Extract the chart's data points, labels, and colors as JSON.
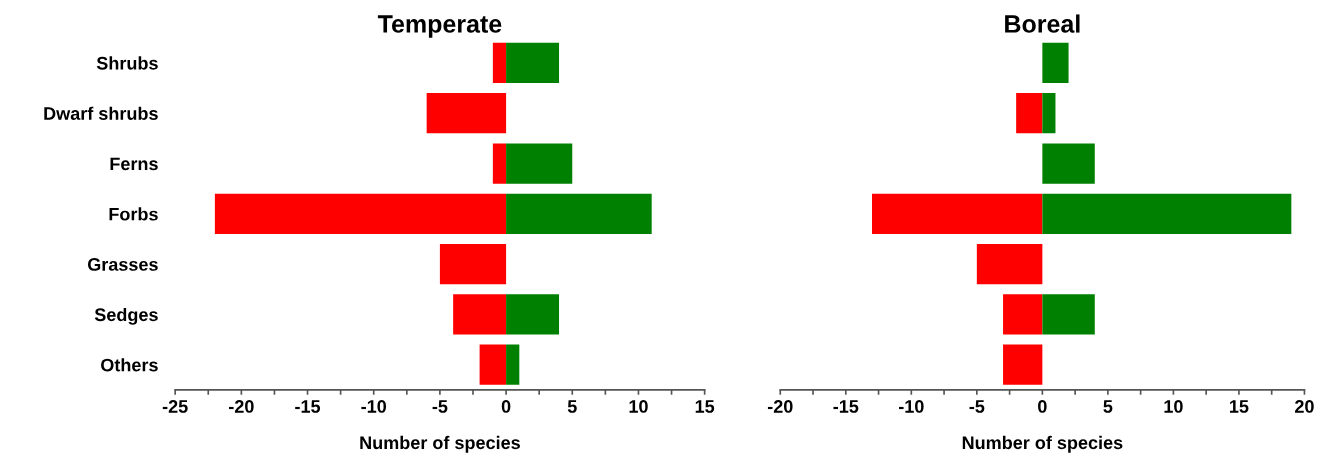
{
  "chart_data": [
    {
      "type": "bar",
      "orientation": "horizontal",
      "stacked": true,
      "title": "Temperate",
      "xlabel": "Number of species",
      "categories": [
        "Shrubs",
        "Dwarf shrubs",
        "Ferns",
        "Forbs",
        "Grasses",
        "Sedges",
        "Others"
      ],
      "series": [
        {
          "color": "#ff0000",
          "values": [
            -1,
            -6,
            -1,
            -22,
            -5,
            -4,
            -2
          ]
        },
        {
          "color": "#008000",
          "values": [
            4,
            0,
            5,
            11,
            0,
            4,
            1
          ]
        }
      ],
      "xlim": [
        -25,
        15
      ],
      "xticks": [
        -25,
        {
          "value": -22.5,
          "label": null
        },
        -20,
        {
          "value": -17.5,
          "label": null
        },
        -15,
        {
          "value": -12.5,
          "label": null
        },
        -10,
        {
          "value": -7.5,
          "label": null
        },
        -5,
        {
          "value": -2.5,
          "label": null
        },
        0,
        {
          "value": 2.5,
          "label": null
        },
        5,
        {
          "value": 7.5,
          "label": null
        },
        10,
        {
          "value": 12.5,
          "label": null
        },
        15
      ],
      "grid": false,
      "legend": false
    },
    {
      "type": "bar",
      "orientation": "horizontal",
      "stacked": true,
      "title": "Boreal",
      "xlabel": "Number of species",
      "categories": [
        null,
        null,
        null,
        null,
        null,
        null,
        null
      ],
      "series": [
        {
          "color": "#ff0000",
          "values": [
            0,
            -2,
            0,
            -13,
            -5,
            -3,
            -3
          ]
        },
        {
          "color": "#008000",
          "values": [
            2,
            1,
            4,
            19,
            0,
            4,
            0
          ]
        }
      ],
      "xlim": [
        -20,
        20
      ],
      "xticks": [
        -20,
        {
          "value": -17.5,
          "label": null
        },
        -15,
        {
          "value": -12.5,
          "label": null
        },
        -10,
        {
          "value": -7.5,
          "label": null
        },
        -5,
        {
          "value": -2.5,
          "label": null
        },
        0,
        {
          "value": 2.5,
          "label": null
        },
        5,
        {
          "value": 7.5,
          "label": null
        },
        10,
        {
          "value": 12.5,
          "label": null
        },
        15,
        {
          "value": 17.5,
          "label": null
        },
        20
      ],
      "tick_labels": "x",
      "grid": false,
      "legend": false
    }
  ]
}
